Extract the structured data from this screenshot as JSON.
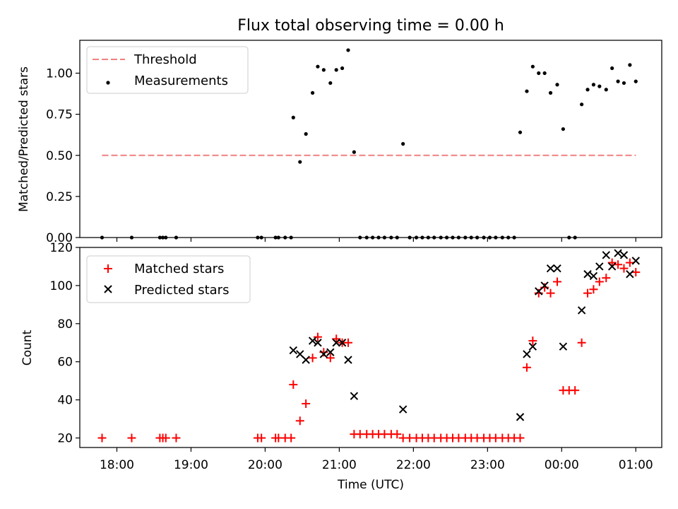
{
  "figure": {
    "title": "Flux total observing time = 0.00 h",
    "xlabel": "Time (UTC)",
    "x_ticks": [
      "18:00",
      "19:00",
      "20:00",
      "21:00",
      "22:00",
      "23:00",
      "00:00",
      "01:00"
    ]
  },
  "chart_data": [
    {
      "type": "scatter",
      "title": "Flux total observing time = 0.00 h",
      "xlabel": "",
      "ylabel": "Matched/Predicted stars",
      "x_unit": "hours since 17:00 UTC",
      "xlim": [
        0.5,
        8.35
      ],
      "ylim": [
        0,
        1.2
      ],
      "yticks": [
        0.0,
        0.25,
        0.5,
        0.75,
        1.0
      ],
      "ytick_labels": [
        "0.00",
        "0.25",
        "0.50",
        "0.75",
        "1.00"
      ],
      "legend": {
        "location": "upper-left",
        "entries": [
          "Threshold",
          "Measurements"
        ]
      },
      "threshold": {
        "name": "Threshold",
        "y": 0.5,
        "x": [
          0.8,
          8.0
        ],
        "color": "#f08080",
        "style": "dashed"
      },
      "measurements": {
        "name": "Measurements",
        "color": "#000000",
        "points": [
          [
            0.8,
            0.0
          ],
          [
            1.2,
            0.0
          ],
          [
            1.58,
            0.0
          ],
          [
            1.62,
            0.0
          ],
          [
            1.66,
            0.0
          ],
          [
            1.8,
            0.0
          ],
          [
            2.9,
            0.0
          ],
          [
            2.95,
            0.0
          ],
          [
            3.14,
            0.0
          ],
          [
            3.18,
            0.0
          ],
          [
            3.27,
            0.0
          ],
          [
            3.35,
            0.0
          ],
          [
            3.38,
            0.73
          ],
          [
            3.47,
            0.46
          ],
          [
            3.55,
            0.63
          ],
          [
            3.64,
            0.88
          ],
          [
            3.71,
            1.04
          ],
          [
            3.79,
            1.02
          ],
          [
            3.88,
            0.94
          ],
          [
            3.96,
            1.02
          ],
          [
            4.04,
            1.03
          ],
          [
            4.12,
            1.14
          ],
          [
            4.2,
            0.52
          ],
          [
            4.28,
            0.0
          ],
          [
            4.37,
            0.0
          ],
          [
            4.45,
            0.0
          ],
          [
            4.53,
            0.0
          ],
          [
            4.61,
            0.0
          ],
          [
            4.7,
            0.0
          ],
          [
            4.78,
            0.0
          ],
          [
            4.86,
            0.57
          ],
          [
            4.95,
            0.0
          ],
          [
            5.04,
            0.0
          ],
          [
            5.12,
            0.0
          ],
          [
            5.2,
            0.0
          ],
          [
            5.28,
            0.0
          ],
          [
            5.37,
            0.0
          ],
          [
            5.45,
            0.0
          ],
          [
            5.53,
            0.0
          ],
          [
            5.61,
            0.0
          ],
          [
            5.7,
            0.0
          ],
          [
            5.78,
            0.0
          ],
          [
            5.86,
            0.0
          ],
          [
            5.95,
            0.0
          ],
          [
            6.03,
            0.0
          ],
          [
            6.11,
            0.0
          ],
          [
            6.2,
            0.0
          ],
          [
            6.28,
            0.0
          ],
          [
            6.36,
            0.0
          ],
          [
            6.44,
            0.64
          ],
          [
            6.53,
            0.89
          ],
          [
            6.61,
            1.04
          ],
          [
            6.69,
            1.0
          ],
          [
            6.77,
            1.0
          ],
          [
            6.85,
            0.88
          ],
          [
            6.94,
            0.93
          ],
          [
            7.02,
            0.66
          ],
          [
            7.1,
            0.0
          ],
          [
            7.18,
            0.0
          ],
          [
            7.27,
            0.81
          ],
          [
            7.35,
            0.9
          ],
          [
            7.43,
            0.93
          ],
          [
            7.51,
            0.92
          ],
          [
            7.6,
            0.9
          ],
          [
            7.68,
            1.03
          ],
          [
            7.76,
            0.95
          ],
          [
            7.84,
            0.94
          ],
          [
            7.92,
            1.05
          ],
          [
            8.0,
            0.95
          ]
        ]
      }
    },
    {
      "type": "scatter",
      "title": "",
      "xlabel": "Time (UTC)",
      "ylabel": "Count",
      "x_unit": "hours since 17:00 UTC",
      "xlim": [
        0.5,
        8.35
      ],
      "ylim": [
        15,
        120
      ],
      "yticks": [
        20,
        40,
        60,
        80,
        100,
        120
      ],
      "ytick_labels": [
        "20",
        "40",
        "60",
        "80",
        "100",
        "120"
      ],
      "legend": {
        "location": "upper-left",
        "entries": [
          "Matched stars",
          "Predicted stars"
        ]
      },
      "series": [
        {
          "name": "Matched stars",
          "marker": "+",
          "color": "#ff0000",
          "points": [
            [
              0.8,
              20
            ],
            [
              1.2,
              20
            ],
            [
              1.58,
              20
            ],
            [
              1.62,
              20
            ],
            [
              1.66,
              20
            ],
            [
              1.8,
              20
            ],
            [
              2.9,
              20
            ],
            [
              2.95,
              20
            ],
            [
              3.14,
              20
            ],
            [
              3.18,
              20
            ],
            [
              3.27,
              20
            ],
            [
              3.35,
              20
            ],
            [
              3.38,
              48
            ],
            [
              3.47,
              29
            ],
            [
              3.55,
              38
            ],
            [
              3.64,
              62
            ],
            [
              3.71,
              73
            ],
            [
              3.79,
              65
            ],
            [
              3.88,
              62
            ],
            [
              3.96,
              72
            ],
            [
              4.04,
              70
            ],
            [
              4.12,
              70
            ],
            [
              4.2,
              22
            ],
            [
              4.28,
              22
            ],
            [
              4.37,
              22
            ],
            [
              4.45,
              22
            ],
            [
              4.53,
              22
            ],
            [
              4.61,
              22
            ],
            [
              4.7,
              22
            ],
            [
              4.78,
              22
            ],
            [
              4.86,
              20
            ],
            [
              4.95,
              20
            ],
            [
              5.04,
              20
            ],
            [
              5.12,
              20
            ],
            [
              5.2,
              20
            ],
            [
              5.28,
              20
            ],
            [
              5.37,
              20
            ],
            [
              5.45,
              20
            ],
            [
              5.53,
              20
            ],
            [
              5.61,
              20
            ],
            [
              5.7,
              20
            ],
            [
              5.78,
              20
            ],
            [
              5.86,
              20
            ],
            [
              5.95,
              20
            ],
            [
              6.03,
              20
            ],
            [
              6.11,
              20
            ],
            [
              6.2,
              20
            ],
            [
              6.28,
              20
            ],
            [
              6.36,
              20
            ],
            [
              6.44,
              20
            ],
            [
              6.53,
              57
            ],
            [
              6.61,
              71
            ],
            [
              6.69,
              96
            ],
            [
              6.77,
              99
            ],
            [
              6.85,
              96
            ],
            [
              6.94,
              102
            ],
            [
              7.02,
              45
            ],
            [
              7.1,
              45
            ],
            [
              7.18,
              45
            ],
            [
              7.27,
              70
            ],
            [
              7.35,
              96
            ],
            [
              7.43,
              98
            ],
            [
              7.51,
              102
            ],
            [
              7.6,
              104
            ],
            [
              7.68,
              112
            ],
            [
              7.76,
              111
            ],
            [
              7.84,
              109
            ],
            [
              7.92,
              112
            ],
            [
              8.0,
              107
            ]
          ]
        },
        {
          "name": "Predicted stars",
          "marker": "x",
          "color": "#000000",
          "points": [
            [
              3.38,
              66
            ],
            [
              3.47,
              64
            ],
            [
              3.55,
              61
            ],
            [
              3.64,
              71
            ],
            [
              3.71,
              70
            ],
            [
              3.79,
              64
            ],
            [
              3.88,
              65
            ],
            [
              3.96,
              70
            ],
            [
              4.04,
              70
            ],
            [
              4.12,
              61
            ],
            [
              4.2,
              42
            ],
            [
              4.86,
              35
            ],
            [
              6.44,
              31
            ],
            [
              6.53,
              64
            ],
            [
              6.61,
              68
            ],
            [
              6.69,
              97
            ],
            [
              6.77,
              100
            ],
            [
              6.85,
              109
            ],
            [
              6.94,
              109
            ],
            [
              7.02,
              68
            ],
            [
              7.27,
              87
            ],
            [
              7.35,
              106
            ],
            [
              7.43,
              105
            ],
            [
              7.51,
              110
            ],
            [
              7.6,
              116
            ],
            [
              7.68,
              110
            ],
            [
              7.76,
              117
            ],
            [
              7.84,
              116
            ],
            [
              7.92,
              106
            ],
            [
              8.0,
              113
            ]
          ]
        }
      ]
    }
  ]
}
